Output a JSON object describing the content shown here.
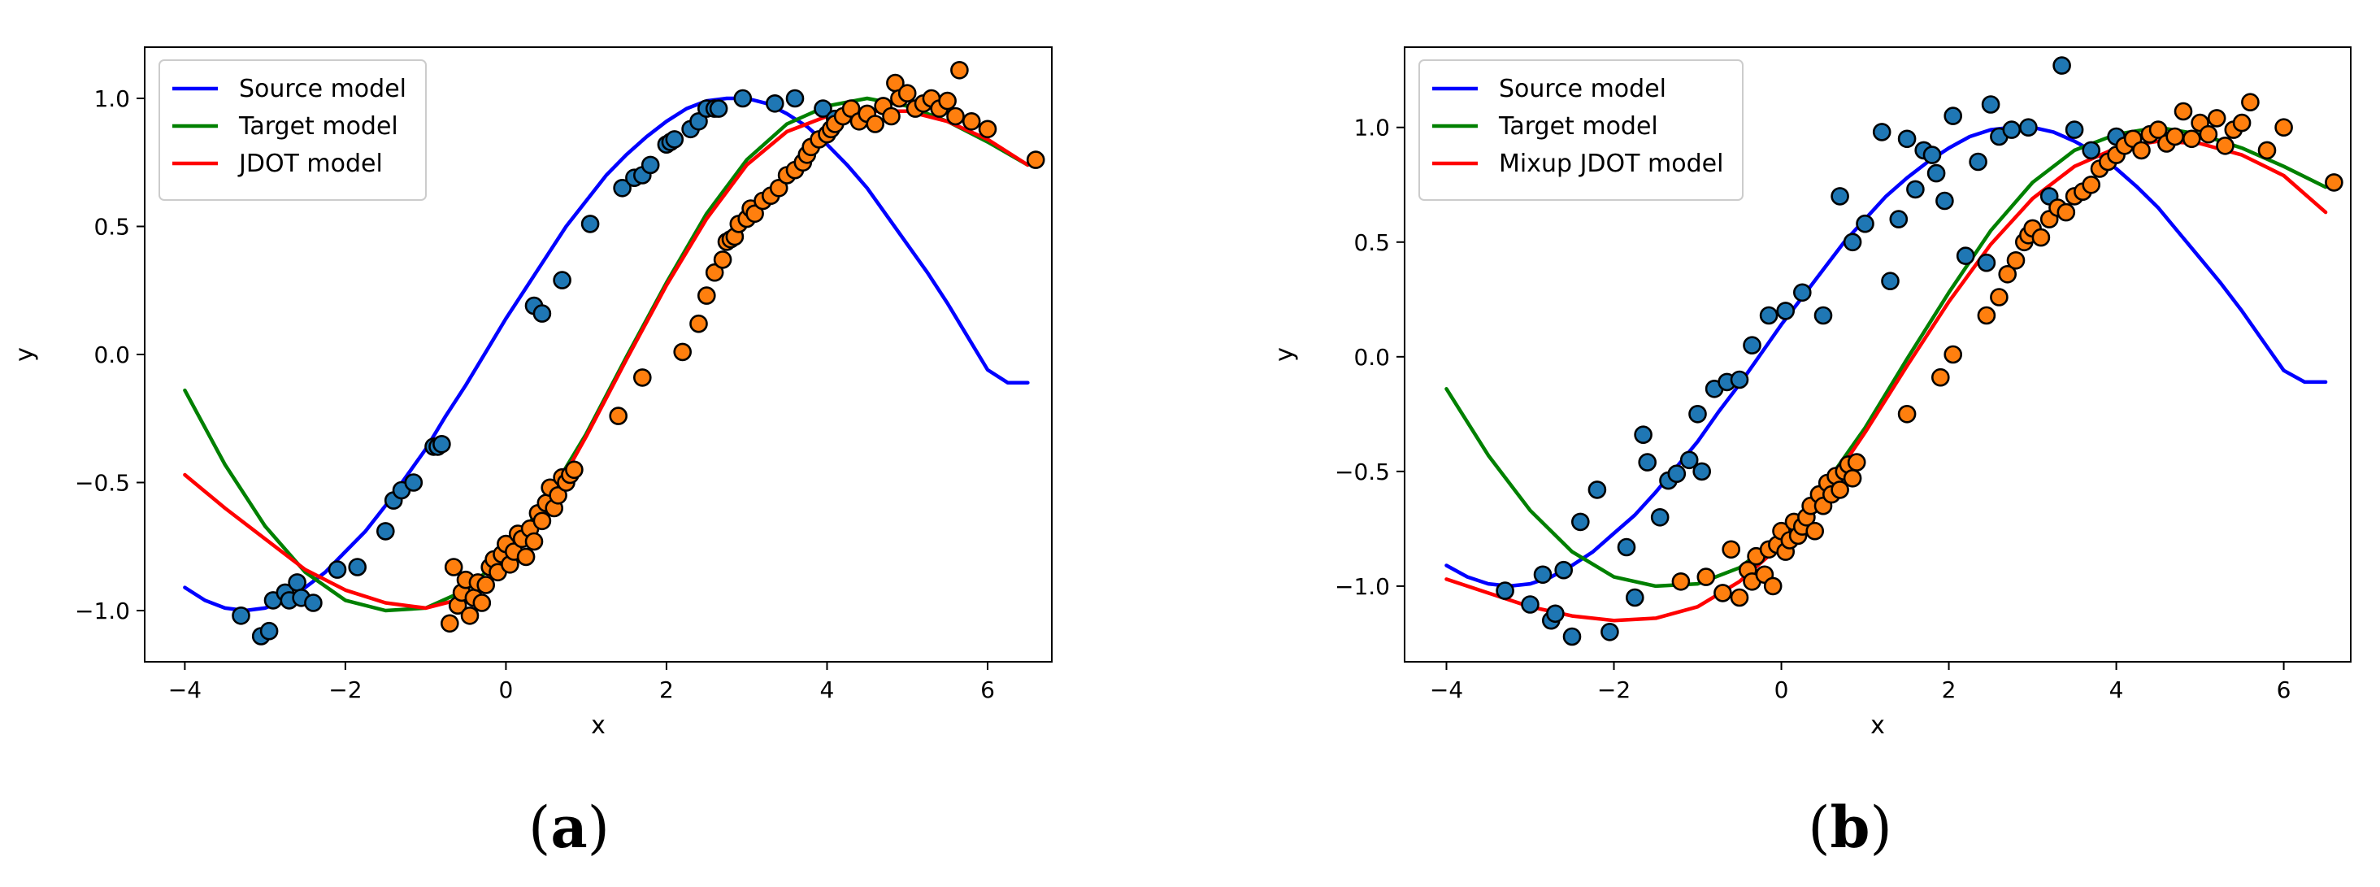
{
  "figure_title": "",
  "colors": {
    "source": "#0000ff",
    "target": "#008000",
    "model": "#ff0000",
    "source_points": "#1f77b4",
    "target_points": "#ff7f0e",
    "edge": "#000000"
  },
  "chart_data": [
    {
      "type": "scatter+line",
      "caption": {
        "open": "(",
        "letter": "a",
        "close": ")"
      },
      "title": "",
      "xlabel": "x",
      "ylabel": "y",
      "xlim": [
        -4.5,
        6.8
      ],
      "ylim": [
        -1.2,
        1.2
      ],
      "xticks": [
        -4,
        -2,
        0,
        2,
        4,
        6
      ],
      "xtick_labels": [
        "−4",
        "−2",
        "0",
        "2",
        "4",
        "6"
      ],
      "yticks": [
        -1.0,
        -0.5,
        0.0,
        0.5,
        1.0
      ],
      "ytick_labels": [
        "−1.0",
        "−0.5",
        "0.0",
        "0.5",
        "1.0"
      ],
      "grid": false,
      "legend_position": "top-left",
      "legend": [
        {
          "label": "Source model",
          "color": "#0000ff"
        },
        {
          "label": "Target model",
          "color": "#008000"
        },
        {
          "label": "JDOT model",
          "color": "#ff0000"
        }
      ],
      "series": [
        {
          "name": "Source model",
          "kind": "line",
          "color": "#0000ff",
          "x": [
            -4,
            -3.75,
            -3.5,
            -3.25,
            -3,
            -2.75,
            -2.5,
            -2.25,
            -2,
            -1.75,
            -1.5,
            -1.25,
            -1,
            -0.75,
            -0.5,
            -0.25,
            0,
            0.25,
            0.5,
            0.75,
            1,
            1.25,
            1.5,
            1.75,
            2,
            2.25,
            2.5,
            2.75,
            3,
            3.25,
            3.5,
            3.75,
            4,
            4.25,
            4.5,
            4.75,
            5,
            5.25,
            5.5,
            5.75,
            6,
            6.25,
            6.5
          ],
          "y": [
            -0.91,
            -0.96,
            -0.99,
            -1.0,
            -0.99,
            -0.96,
            -0.91,
            -0.85,
            -0.77,
            -0.69,
            -0.59,
            -0.48,
            -0.37,
            -0.24,
            -0.12,
            0.01,
            0.14,
            0.26,
            0.38,
            0.5,
            0.6,
            0.7,
            0.78,
            0.85,
            0.91,
            0.96,
            0.99,
            1.0,
            1.0,
            0.98,
            0.94,
            0.89,
            0.82,
            0.74,
            0.65,
            0.54,
            0.43,
            0.32,
            0.2,
            0.07,
            -0.06,
            -0.11,
            -0.11
          ]
        },
        {
          "name": "Target model",
          "kind": "line",
          "color": "#008000",
          "x": [
            -4,
            -3.5,
            -3,
            -2.5,
            -2,
            -1.5,
            -1,
            -0.5,
            0,
            0.5,
            1,
            1.5,
            2,
            2.5,
            3,
            3.5,
            4,
            4.5,
            5,
            5.5,
            6,
            6.5
          ],
          "y": [
            -0.14,
            -0.43,
            -0.67,
            -0.85,
            -0.96,
            -1.0,
            -0.99,
            -0.92,
            -0.78,
            -0.57,
            -0.31,
            -0.01,
            0.28,
            0.55,
            0.76,
            0.9,
            0.97,
            1.0,
            0.97,
            0.91,
            0.83,
            0.74
          ]
        },
        {
          "name": "JDOT model",
          "kind": "line",
          "color": "#ff0000",
          "x": [
            -4,
            -3.5,
            -3,
            -2.5,
            -2,
            -1.5,
            -1,
            -0.5,
            0,
            0.5,
            1,
            1.5,
            2,
            2.5,
            3,
            3.5,
            4,
            4.5,
            5,
            5.5,
            6,
            6.5
          ],
          "y": [
            -0.47,
            -0.6,
            -0.72,
            -0.84,
            -0.92,
            -0.97,
            -0.99,
            -0.95,
            -0.82,
            -0.6,
            -0.32,
            -0.02,
            0.27,
            0.53,
            0.74,
            0.87,
            0.93,
            0.95,
            0.95,
            0.91,
            0.84,
            0.74
          ]
        },
        {
          "name": "Source samples",
          "kind": "scatter",
          "color": "#1f77b4",
          "x": [
            -3.3,
            -3.05,
            -2.95,
            -2.9,
            -2.75,
            -2.7,
            -2.6,
            -2.55,
            -2.4,
            -2.1,
            -1.85,
            -1.5,
            -1.4,
            -1.3,
            -1.15,
            -0.9,
            -0.85,
            -0.8,
            0.35,
            0.45,
            0.7,
            1.05,
            1.45,
            1.6,
            1.7,
            1.8,
            2.0,
            2.05,
            2.1,
            2.3,
            2.4,
            2.5,
            2.6,
            2.65,
            2.95,
            3.35,
            3.6,
            3.95,
            4.1
          ],
          "y": [
            -1.02,
            -1.1,
            -1.08,
            -0.96,
            -0.93,
            -0.96,
            -0.89,
            -0.95,
            -0.97,
            -0.84,
            -0.83,
            -0.69,
            -0.57,
            -0.53,
            -0.5,
            -0.36,
            -0.36,
            -0.35,
            0.19,
            0.16,
            0.29,
            0.51,
            0.65,
            0.69,
            0.7,
            0.74,
            0.82,
            0.83,
            0.84,
            0.88,
            0.91,
            0.96,
            0.96,
            0.96,
            1.0,
            0.98,
            1.0,
            0.96,
            0.92
          ]
        },
        {
          "name": "Target samples",
          "kind": "scatter",
          "color": "#ff7f0e",
          "x": [
            -0.7,
            -0.65,
            -0.6,
            -0.55,
            -0.5,
            -0.45,
            -0.4,
            -0.35,
            -0.3,
            -0.25,
            -0.2,
            -0.15,
            -0.1,
            -0.05,
            0.0,
            0.05,
            0.1,
            0.15,
            0.2,
            0.25,
            0.3,
            0.35,
            0.4,
            0.45,
            0.5,
            0.55,
            0.6,
            0.65,
            0.7,
            0.75,
            0.8,
            0.85,
            1.4,
            1.7,
            2.2,
            2.4,
            2.5,
            2.6,
            2.7,
            2.75,
            2.8,
            2.85,
            2.9,
            3.0,
            3.05,
            3.1,
            3.2,
            3.3,
            3.4,
            3.5,
            3.6,
            3.7,
            3.75,
            3.8,
            3.9,
            4.0,
            4.05,
            4.1,
            4.2,
            4.3,
            4.4,
            4.5,
            4.6,
            4.7,
            4.8,
            4.85,
            4.9,
            5.0,
            5.1,
            5.2,
            5.3,
            5.4,
            5.5,
            5.6,
            5.65,
            5.8,
            6.0,
            6.6
          ],
          "y": [
            -1.05,
            -0.83,
            -0.98,
            -0.93,
            -0.88,
            -1.02,
            -0.95,
            -0.89,
            -0.97,
            -0.9,
            -0.83,
            -0.8,
            -0.85,
            -0.78,
            -0.74,
            -0.82,
            -0.77,
            -0.7,
            -0.72,
            -0.79,
            -0.68,
            -0.73,
            -0.62,
            -0.65,
            -0.58,
            -0.52,
            -0.6,
            -0.55,
            -0.48,
            -0.5,
            -0.47,
            -0.45,
            -0.24,
            -0.09,
            0.01,
            0.12,
            0.23,
            0.32,
            0.37,
            0.44,
            0.45,
            0.46,
            0.51,
            0.53,
            0.57,
            0.55,
            0.6,
            0.62,
            0.65,
            0.7,
            0.72,
            0.75,
            0.78,
            0.81,
            0.84,
            0.86,
            0.88,
            0.9,
            0.93,
            0.96,
            0.91,
            0.94,
            0.9,
            0.97,
            0.93,
            1.06,
            1.0,
            1.02,
            0.96,
            0.98,
            1.0,
            0.96,
            0.99,
            0.93,
            1.11,
            0.91,
            0.88,
            0.76
          ]
        }
      ]
    },
    {
      "type": "scatter+line",
      "caption": {
        "open": "(",
        "letter": "b",
        "close": ")"
      },
      "title": "",
      "xlabel": "x",
      "ylabel": "y",
      "xlim": [
        -4.5,
        6.8
      ],
      "ylim": [
        -1.33,
        1.35
      ],
      "xticks": [
        -4,
        -2,
        0,
        2,
        4,
        6
      ],
      "xtick_labels": [
        "−4",
        "−2",
        "0",
        "2",
        "4",
        "6"
      ],
      "yticks": [
        -1.0,
        -0.5,
        0.0,
        0.5,
        1.0
      ],
      "ytick_labels": [
        "−1.0",
        "−0.5",
        "0.0",
        "0.5",
        "1.0"
      ],
      "grid": false,
      "legend_position": "top-left",
      "legend": [
        {
          "label": "Source model",
          "color": "#0000ff"
        },
        {
          "label": "Target model",
          "color": "#008000"
        },
        {
          "label": "Mixup JDOT model",
          "color": "#ff0000"
        }
      ],
      "series": [
        {
          "name": "Source model",
          "kind": "line",
          "color": "#0000ff",
          "x": [
            -4,
            -3.75,
            -3.5,
            -3.25,
            -3,
            -2.75,
            -2.5,
            -2.25,
            -2,
            -1.75,
            -1.5,
            -1.25,
            -1,
            -0.75,
            -0.5,
            -0.25,
            0,
            0.25,
            0.5,
            0.75,
            1,
            1.25,
            1.5,
            1.75,
            2,
            2.25,
            2.5,
            2.75,
            3,
            3.25,
            3.5,
            3.75,
            4,
            4.25,
            4.5,
            4.75,
            5,
            5.25,
            5.5,
            5.75,
            6,
            6.25,
            6.5
          ],
          "y": [
            -0.91,
            -0.96,
            -0.99,
            -1.0,
            -0.99,
            -0.96,
            -0.91,
            -0.85,
            -0.77,
            -0.69,
            -0.59,
            -0.48,
            -0.37,
            -0.24,
            -0.12,
            0.01,
            0.14,
            0.26,
            0.38,
            0.5,
            0.6,
            0.7,
            0.78,
            0.85,
            0.91,
            0.96,
            0.99,
            1.0,
            1.0,
            0.98,
            0.94,
            0.89,
            0.82,
            0.74,
            0.65,
            0.54,
            0.43,
            0.32,
            0.2,
            0.07,
            -0.06,
            -0.11,
            -0.11
          ]
        },
        {
          "name": "Target model",
          "kind": "line",
          "color": "#008000",
          "x": [
            -4,
            -3.5,
            -3,
            -2.5,
            -2,
            -1.5,
            -1,
            -0.5,
            0,
            0.5,
            1,
            1.5,
            2,
            2.5,
            3,
            3.5,
            4,
            4.5,
            5,
            5.5,
            6,
            6.5
          ],
          "y": [
            -0.14,
            -0.43,
            -0.67,
            -0.85,
            -0.96,
            -1.0,
            -0.99,
            -0.92,
            -0.78,
            -0.57,
            -0.31,
            -0.01,
            0.28,
            0.55,
            0.76,
            0.9,
            0.97,
            1.0,
            0.97,
            0.91,
            0.83,
            0.74
          ]
        },
        {
          "name": "Mixup JDOT model",
          "kind": "line",
          "color": "#ff0000",
          "x": [
            -4,
            -3.5,
            -3,
            -2.5,
            -2,
            -1.5,
            -1,
            -0.5,
            0,
            0.5,
            1,
            1.5,
            2,
            2.5,
            3,
            3.5,
            4,
            4.5,
            5,
            5.5,
            6,
            6.5
          ],
          "y": [
            -0.97,
            -1.03,
            -1.09,
            -1.13,
            -1.15,
            -1.14,
            -1.09,
            -0.98,
            -0.82,
            -0.6,
            -0.33,
            -0.04,
            0.24,
            0.49,
            0.69,
            0.83,
            0.91,
            0.94,
            0.93,
            0.88,
            0.79,
            0.63
          ]
        },
        {
          "name": "Source samples",
          "kind": "scatter",
          "color": "#1f77b4",
          "x": [
            -3.3,
            -3.0,
            -2.85,
            -2.75,
            -2.7,
            -2.6,
            -2.5,
            -2.4,
            -2.2,
            -2.05,
            -1.85,
            -1.75,
            -1.65,
            -1.6,
            -1.45,
            -1.35,
            -1.25,
            -1.1,
            -1.0,
            -0.95,
            -0.8,
            -0.65,
            -0.5,
            -0.35,
            -0.15,
            0.05,
            0.25,
            0.5,
            0.7,
            0.85,
            1.0,
            1.2,
            1.3,
            1.4,
            1.5,
            1.6,
            1.7,
            1.8,
            1.85,
            1.95,
            2.05,
            2.2,
            2.35,
            2.45,
            2.5,
            2.6,
            2.75,
            2.95,
            3.2,
            3.35,
            3.5,
            3.7,
            4.0
          ],
          "y": [
            -1.02,
            -1.08,
            -0.95,
            -1.15,
            -1.12,
            -0.93,
            -1.22,
            -0.72,
            -0.58,
            -1.2,
            -0.83,
            -1.05,
            -0.34,
            -0.46,
            -0.7,
            -0.54,
            -0.51,
            -0.45,
            -0.25,
            -0.5,
            -0.14,
            -0.11,
            -0.1,
            0.05,
            0.18,
            0.2,
            0.28,
            0.18,
            0.7,
            0.5,
            0.58,
            0.98,
            0.33,
            0.6,
            0.95,
            0.73,
            0.9,
            0.88,
            0.8,
            0.68,
            1.05,
            0.44,
            0.85,
            0.41,
            1.1,
            0.96,
            0.99,
            1.0,
            0.7,
            1.27,
            0.99,
            0.9,
            0.96
          ]
        },
        {
          "name": "Target samples",
          "kind": "scatter",
          "color": "#ff7f0e",
          "x": [
            -1.2,
            -0.9,
            -0.7,
            -0.6,
            -0.5,
            -0.4,
            -0.35,
            -0.3,
            -0.2,
            -0.15,
            -0.1,
            -0.05,
            0.0,
            0.05,
            0.1,
            0.15,
            0.2,
            0.25,
            0.3,
            0.35,
            0.4,
            0.45,
            0.5,
            0.55,
            0.6,
            0.65,
            0.7,
            0.75,
            0.8,
            0.85,
            0.9,
            1.5,
            1.9,
            2.05,
            2.45,
            2.6,
            2.7,
            2.8,
            2.9,
            2.95,
            3.0,
            3.1,
            3.2,
            3.3,
            3.4,
            3.5,
            3.6,
            3.7,
            3.8,
            3.9,
            4.0,
            4.1,
            4.2,
            4.3,
            4.4,
            4.5,
            4.6,
            4.7,
            4.8,
            4.9,
            5.0,
            5.1,
            5.2,
            5.3,
            5.4,
            5.5,
            5.6,
            5.8,
            6.0,
            6.6
          ],
          "y": [
            -0.98,
            -0.96,
            -1.03,
            -0.84,
            -1.05,
            -0.93,
            -0.98,
            -0.87,
            -0.95,
            -0.84,
            -1.0,
            -0.82,
            -0.76,
            -0.85,
            -0.8,
            -0.72,
            -0.78,
            -0.74,
            -0.7,
            -0.65,
            -0.76,
            -0.6,
            -0.65,
            -0.55,
            -0.6,
            -0.52,
            -0.58,
            -0.5,
            -0.47,
            -0.53,
            -0.46,
            -0.25,
            -0.09,
            0.01,
            0.18,
            0.26,
            0.36,
            0.42,
            0.5,
            0.53,
            0.56,
            0.52,
            0.6,
            0.65,
            0.63,
            0.7,
            0.72,
            0.75,
            0.82,
            0.85,
            0.88,
            0.92,
            0.95,
            0.9,
            0.97,
            0.99,
            0.93,
            0.96,
            1.07,
            0.95,
            1.02,
            0.97,
            1.04,
            0.92,
            0.99,
            1.02,
            1.11,
            0.9,
            1.0,
            0.76
          ]
        }
      ]
    }
  ]
}
